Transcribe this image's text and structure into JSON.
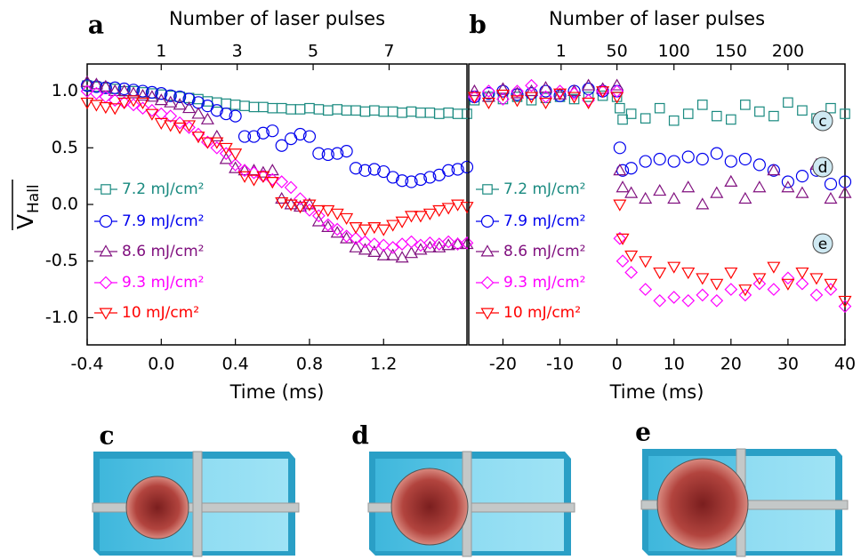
{
  "chart_data": [
    {
      "type": "scatter",
      "panel": "a",
      "xlabel": "Time (ms)",
      "x2label": "Number of laser pulses",
      "ylabel": "V",
      "ylabel_sub": "Hall",
      "xlim": [
        -0.4,
        1.65
      ],
      "xticks": [
        -0.4,
        {
          "value": 0,
          "label": "0.0"
        },
        0.4,
        0.8,
        1.2
      ],
      "x2lim": [
        -0.95,
        9.05
      ],
      "x2ticks": [
        1,
        3,
        5,
        7
      ],
      "ylim": [
        -1.24,
        1.24
      ],
      "yticks": [
        {
          "value": 1,
          "label": "1.0"
        },
        0.5,
        {
          "value": 0,
          "label": "0.0"
        },
        -0.5,
        {
          "value": -1,
          "label": "-1.0"
        }
      ],
      "legend": "left",
      "x": [
        -0.4,
        -0.35,
        -0.3,
        -0.25,
        -0.2,
        -0.15,
        -0.1,
        -0.05,
        0,
        0.05,
        0.1,
        0.15,
        0.2,
        0.25,
        0.3,
        0.35,
        0.4,
        0.45,
        0.5,
        0.55,
        0.6,
        0.65,
        0.7,
        0.75,
        0.8,
        0.85,
        0.9,
        0.95,
        1.0,
        1.05,
        1.1,
        1.15,
        1.2,
        1.25,
        1.3,
        1.35,
        1.4,
        1.45,
        1.5,
        1.55,
        1.6,
        1.65
      ],
      "series": [
        {
          "name": "7.2 mJ/cm²",
          "color": "#1a8a80",
          "marker": "square",
          "values": [
            1.05,
            1.04,
            1.03,
            1.02,
            1.0,
            1.0,
            0.99,
            0.98,
            0.97,
            0.96,
            0.95,
            0.94,
            0.93,
            0.91,
            0.9,
            0.89,
            0.88,
            0.87,
            0.86,
            0.86,
            0.85,
            0.85,
            0.84,
            0.84,
            0.85,
            0.84,
            0.83,
            0.84,
            0.83,
            0.83,
            0.82,
            0.83,
            0.82,
            0.82,
            0.81,
            0.82,
            0.81,
            0.81,
            0.8,
            0.81,
            0.8,
            0.8
          ]
        },
        {
          "name": "7.9 mJ/cm²",
          "color": "#0000ee",
          "marker": "circle",
          "values": [
            1.05,
            1.04,
            1.03,
            1.03,
            1.02,
            1.01,
            1.0,
            0.99,
            0.98,
            0.96,
            0.95,
            0.93,
            0.9,
            0.87,
            0.83,
            0.8,
            0.78,
            0.6,
            0.6,
            0.63,
            0.65,
            0.52,
            0.58,
            0.62,
            0.6,
            0.45,
            0.44,
            0.45,
            0.47,
            0.32,
            0.3,
            0.31,
            0.29,
            0.24,
            0.21,
            0.2,
            0.22,
            0.24,
            0.26,
            0.3,
            0.31,
            0.33
          ]
        },
        {
          "name": "8.6 mJ/cm²",
          "color": "#80107f",
          "marker": "triangle-up",
          "values": [
            1.08,
            1.06,
            1.04,
            1.0,
            1.0,
            0.98,
            0.96,
            0.95,
            0.92,
            0.9,
            0.88,
            0.85,
            0.8,
            0.75,
            0.6,
            0.4,
            0.32,
            0.3,
            0.3,
            0.28,
            0.3,
            0.05,
            0.0,
            -0.02,
            0.0,
            -0.15,
            -0.2,
            -0.25,
            -0.3,
            -0.38,
            -0.4,
            -0.42,
            -0.45,
            -0.45,
            -0.47,
            -0.43,
            -0.4,
            -0.38,
            -0.38,
            -0.36,
            -0.35,
            -0.35
          ]
        },
        {
          "name": "9.3 mJ/cm²",
          "color": "#ff00ff",
          "marker": "diamond",
          "values": [
            1.0,
            0.98,
            0.95,
            0.92,
            0.9,
            0.88,
            0.85,
            0.83,
            0.8,
            0.78,
            0.72,
            0.68,
            0.62,
            0.55,
            0.5,
            0.45,
            0.35,
            0.3,
            0.28,
            0.25,
            0.22,
            0.2,
            0.15,
            0.05,
            -0.05,
            -0.1,
            -0.18,
            -0.22,
            -0.28,
            -0.3,
            -0.33,
            -0.35,
            -0.36,
            -0.38,
            -0.35,
            -0.33,
            -0.36,
            -0.34,
            -0.35,
            -0.33,
            -0.35,
            -0.34
          ]
        },
        {
          "name": "10 mJ/cm²",
          "color": "#ff0000",
          "marker": "triangle-down",
          "values": [
            0.9,
            0.88,
            0.86,
            0.85,
            0.9,
            0.92,
            0.9,
            0.8,
            0.72,
            0.7,
            0.68,
            0.7,
            0.6,
            0.55,
            0.55,
            0.5,
            0.45,
            0.25,
            0.22,
            0.25,
            0.2,
            0.02,
            0.0,
            -0.02,
            0.0,
            -0.05,
            -0.05,
            -0.08,
            -0.12,
            -0.2,
            -0.22,
            -0.2,
            -0.22,
            -0.18,
            -0.15,
            -0.1,
            -0.1,
            -0.08,
            -0.05,
            -0.03,
            0.0,
            -0.02
          ]
        }
      ]
    },
    {
      "type": "scatter",
      "panel": "b",
      "xlabel": "Time (ms)",
      "x2label": "Number of laser pulses",
      "xlim": [
        -26,
        40
      ],
      "xticks": [
        -20,
        -10,
        0,
        10,
        20,
        30,
        40
      ],
      "x2lim": [
        -80,
        250
      ],
      "x2ticks": [
        1,
        50,
        100,
        150,
        200
      ],
      "ylim": [
        -1.24,
        1.24
      ],
      "legend": "left",
      "annotations": [
        "c",
        "d",
        "e"
      ],
      "x": [
        -25,
        -22.5,
        -20,
        -17.5,
        -15,
        -12.5,
        -10,
        -7.5,
        -5,
        -2.5,
        0,
        0.5,
        1,
        2.5,
        5,
        7.5,
        10,
        12.5,
        15,
        17.5,
        20,
        22.5,
        25,
        27.5,
        30,
        32.5,
        35,
        37.5,
        40
      ],
      "series": [
        {
          "name": "7.2 mJ/cm²",
          "color": "#1a8a80",
          "marker": "square",
          "values": [
            0.92,
            0.95,
            0.93,
            0.95,
            0.92,
            0.94,
            0.95,
            0.93,
            0.95,
            0.96,
            0.95,
            0.85,
            0.75,
            0.8,
            0.76,
            0.85,
            0.74,
            0.8,
            0.88,
            0.78,
            0.75,
            0.88,
            0.82,
            0.78,
            0.9,
            0.83,
            0.76,
            0.85,
            0.8
          ]
        },
        {
          "name": "7.9 mJ/cm²",
          "color": "#0000ee",
          "marker": "circle",
          "values": [
            0.95,
            0.98,
            1.0,
            0.97,
            0.98,
            1.0,
            0.96,
            1.0,
            1.02,
            1.0,
            1.0,
            0.5,
            0.3,
            0.32,
            0.38,
            0.4,
            0.38,
            0.42,
            0.4,
            0.45,
            0.38,
            0.4,
            0.35,
            0.3,
            0.2,
            0.25,
            0.3,
            0.18,
            0.2
          ]
        },
        {
          "name": "8.6 mJ/cm²",
          "color": "#80107f",
          "marker": "triangle-up",
          "values": [
            1.0,
            0.95,
            1.02,
            0.98,
            1.0,
            1.03,
            0.97,
            1.0,
            1.05,
            1.02,
            1.05,
            0.3,
            0.15,
            0.1,
            0.05,
            0.12,
            0.05,
            0.15,
            0.0,
            0.1,
            0.2,
            0.05,
            0.15,
            0.3,
            0.15,
            0.1,
            0.35,
            0.05,
            0.1
          ]
        },
        {
          "name": "9.3 mJ/cm²",
          "color": "#ff00ff",
          "marker": "diamond",
          "values": [
            0.95,
            1.0,
            0.93,
            1.0,
            1.05,
            0.95,
            1.0,
            0.98,
            0.92,
            1.0,
            1.0,
            -0.3,
            -0.5,
            -0.6,
            -0.75,
            -0.85,
            -0.82,
            -0.85,
            -0.8,
            -0.85,
            -0.75,
            -0.8,
            -0.7,
            -0.75,
            -0.65,
            -0.7,
            -0.8,
            -0.75,
            -0.9
          ]
        },
        {
          "name": "10 mJ/cm²",
          "color": "#ff0000",
          "marker": "triangle-down",
          "values": [
            0.95,
            0.9,
            0.97,
            0.92,
            0.95,
            0.9,
            0.98,
            0.95,
            0.9,
            1.0,
            0.95,
            0.0,
            -0.3,
            -0.45,
            -0.5,
            -0.6,
            -0.55,
            -0.6,
            -0.65,
            -0.7,
            -0.6,
            -0.75,
            -0.65,
            -0.55,
            -0.7,
            -0.6,
            -0.65,
            -0.7,
            -0.85
          ]
        }
      ]
    }
  ],
  "illustration_labels": [
    "c",
    "d",
    "e"
  ]
}
